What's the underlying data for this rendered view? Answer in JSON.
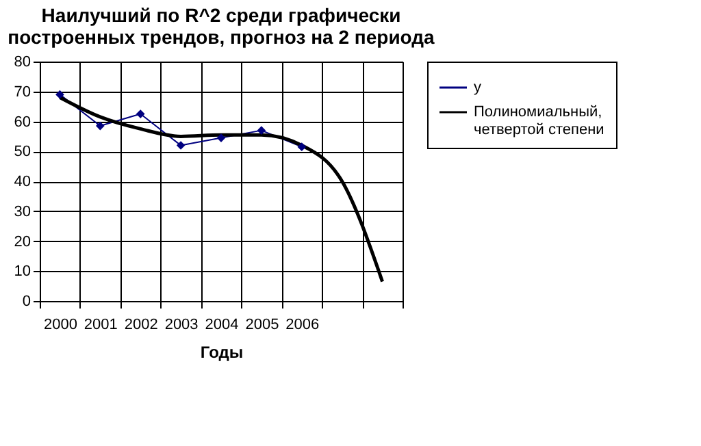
{
  "chart_data": {
    "type": "line",
    "title": [
      "Наилучший  по R^2 среди графически",
      "построенных трендов, прогноз на 2 периода"
    ],
    "xlabel": "Годы",
    "categories": [
      "2000",
      "2001",
      "2002",
      "2003",
      "2004",
      "2005",
      "2006",
      null,
      null
    ],
    "series": [
      {
        "name": "y",
        "color": "#000080",
        "values": [
          69,
          58.5,
          62.5,
          52,
          54.5,
          57,
          51.5,
          null,
          null
        ],
        "marker": "diamond",
        "line_style": "solid"
      },
      {
        "name": "Полиномиальный, четвертой степени",
        "color": "#000000",
        "values": [
          68,
          61.5,
          57.5,
          55,
          55.5,
          55.5,
          52,
          40,
          6.5
        ],
        "marker": "none",
        "line_style": "solid"
      }
    ],
    "ylim": [
      0,
      80
    ],
    "yticks": [
      0,
      10,
      20,
      30,
      40,
      50,
      60,
      70,
      80
    ],
    "grid": true,
    "legend": "right"
  }
}
